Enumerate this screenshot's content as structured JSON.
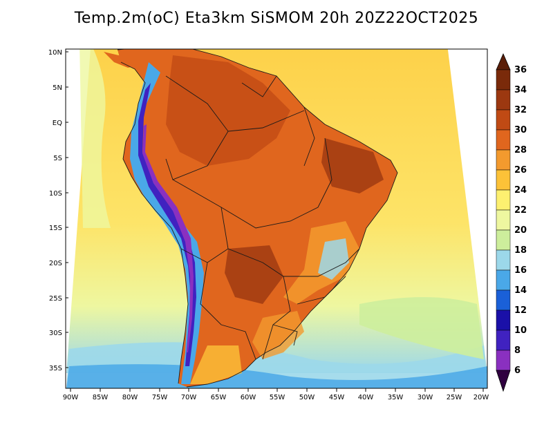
{
  "title": "Temp.2m(oC) Eta3km SiSMOM 20h 20Z22OCT2025",
  "lat_labels": [
    "10N",
    "5N",
    "EQ",
    "5S",
    "10S",
    "15S",
    "20S",
    "25S",
    "30S",
    "35S"
  ],
  "lon_labels": [
    "90W",
    "85W",
    "80W",
    "75W",
    "70W",
    "65W",
    "60W",
    "55W",
    "50W",
    "45W",
    "40W",
    "35W",
    "30W",
    "25W",
    "20W"
  ],
  "colorbar": {
    "labels": [
      "36",
      "34",
      "32",
      "30",
      "28",
      "26",
      "24",
      "22",
      "20",
      "18",
      "16",
      "14",
      "12",
      "10",
      "8",
      "6"
    ],
    "colors": [
      "#7a2a0a",
      "#9c3810",
      "#c04a14",
      "#e0661e",
      "#f39a2e",
      "#fcc238",
      "#fdf070",
      "#eef7a0",
      "#cdee9c",
      "#9cd8ea",
      "#4aa8e8",
      "#1a60d8",
      "#1a10a8",
      "#4022c0",
      "#8a30c0",
      "#5a0a70",
      "#300040"
    ],
    "top_color": "#5a1e08",
    "bottom_color": "#300040"
  }
}
